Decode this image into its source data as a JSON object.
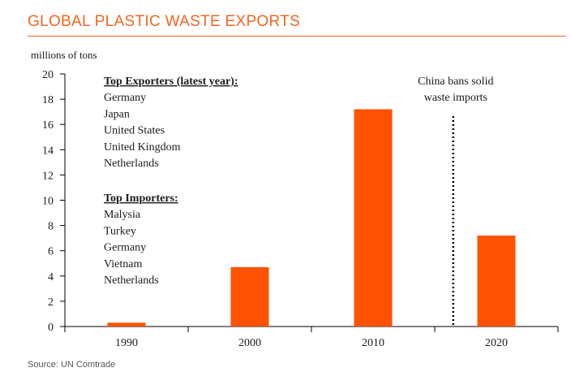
{
  "title": "GLOBAL PLASTIC WASTE EXPORTS",
  "source": "Source: UN Comtrade",
  "colors": {
    "accent": "#f26522",
    "bar": "#ff5200",
    "text": "#1a1a1a"
  },
  "chart_data": {
    "type": "bar",
    "ylabel": "millions of tons",
    "xlabel": "",
    "categories": [
      "1990",
      "2000",
      "2010",
      "2020"
    ],
    "values": [
      0.3,
      4.7,
      17.2,
      7.2
    ],
    "ylim": [
      0,
      20
    ],
    "yticks": [
      0,
      2,
      4,
      6,
      8,
      10,
      12,
      14,
      16,
      18,
      20
    ],
    "grid": false,
    "annotation": {
      "lines": [
        "China bans solid",
        "waste imports"
      ],
      "style": "dotted vertical line between 2010 and 2020"
    },
    "textbox": {
      "exporters_heading": "Top Exporters (latest year):",
      "exporters": [
        "Germany",
        "Japan",
        "United States",
        "United Kingdom",
        "Netherlands"
      ],
      "importers_heading": "Top Importers:",
      "importers": [
        "Malysia",
        "Turkey",
        "Germany",
        "Vietnam",
        "Netherlands"
      ]
    }
  }
}
